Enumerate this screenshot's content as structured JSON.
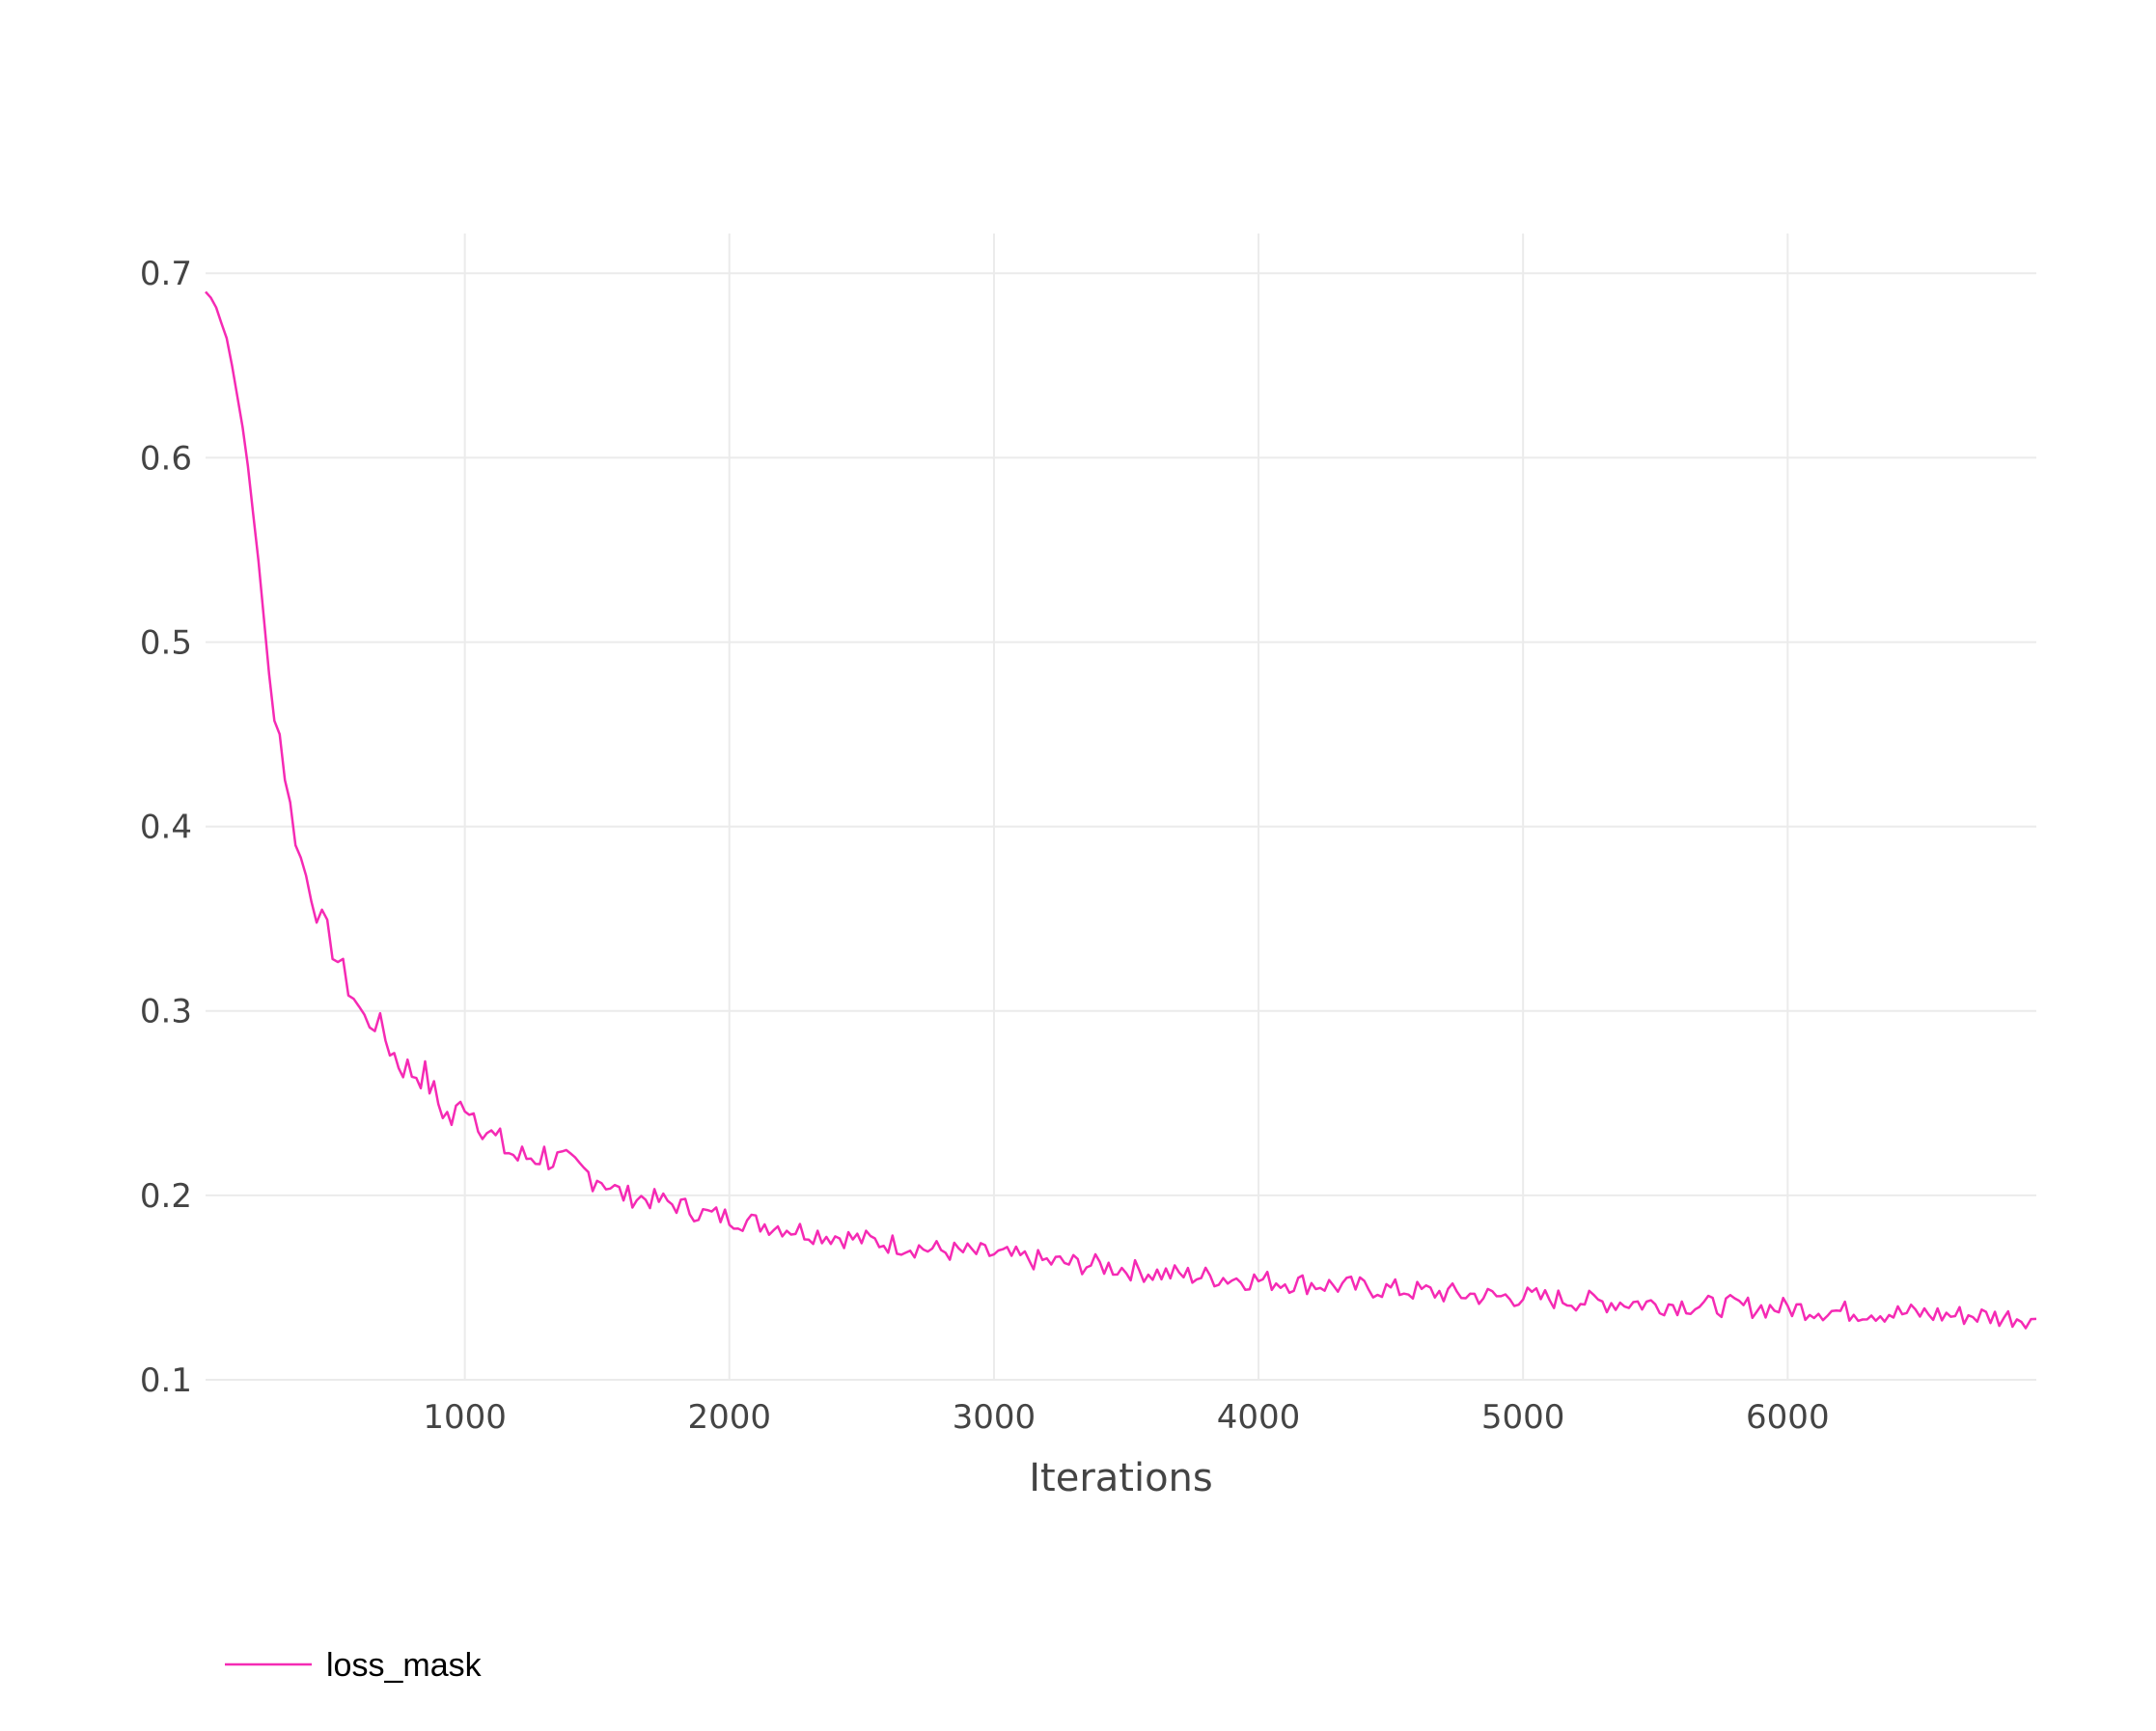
{
  "chart_data": {
    "type": "line",
    "title": "",
    "xlabel": "Iterations",
    "ylabel": "",
    "xlim": [
      20,
      6940
    ],
    "ylim": [
      0.1,
      0.72
    ],
    "xticks": [
      1000,
      2000,
      3000,
      4000,
      5000,
      6000
    ],
    "xtick_labels": [
      "1000",
      "2000",
      "3000",
      "4000",
      "5000",
      "6000"
    ],
    "yticks": [
      0.1,
      0.2,
      0.3,
      0.4,
      0.5,
      0.6,
      0.7
    ],
    "ytick_labels": [
      "0.1",
      "0.2",
      "0.3",
      "0.4",
      "0.5",
      "0.6",
      "0.7"
    ],
    "grid": true,
    "legend": {
      "position": "bottom-left"
    },
    "series": [
      {
        "name": "loss_mask",
        "color": "#f52ab4",
        "x": [
          20,
          60,
          100,
          140,
          180,
          220,
          260,
          300,
          340,
          380,
          420,
          460,
          500,
          540,
          580,
          620,
          660,
          700,
          750,
          800,
          850,
          900,
          950,
          1000,
          1100,
          1200,
          1300,
          1400,
          1500,
          1600,
          1700,
          1800,
          1900,
          2000,
          2100,
          2200,
          2300,
          2400,
          2500,
          2600,
          2700,
          2800,
          2900,
          3000,
          3100,
          3200,
          3300,
          3400,
          3500,
          3600,
          3700,
          3800,
          3900,
          4000,
          4100,
          4200,
          4300,
          4400,
          4500,
          4600,
          4700,
          4800,
          4900,
          5000,
          5100,
          5200,
          5300,
          5400,
          5500,
          5600,
          5700,
          5800,
          5900,
          6000,
          6100,
          6200,
          6300,
          6400,
          6500,
          6600,
          6700,
          6800,
          6900,
          6940
        ],
        "y": [
          0.69,
          0.683,
          0.665,
          0.635,
          0.595,
          0.545,
          0.48,
          0.45,
          0.41,
          0.382,
          0.365,
          0.347,
          0.335,
          0.32,
          0.308,
          0.295,
          0.295,
          0.285,
          0.272,
          0.267,
          0.265,
          0.25,
          0.24,
          0.252,
          0.232,
          0.22,
          0.222,
          0.215,
          0.21,
          0.2,
          0.198,
          0.195,
          0.19,
          0.188,
          0.185,
          0.183,
          0.18,
          0.178,
          0.176,
          0.174,
          0.172,
          0.17,
          0.169,
          0.168,
          0.166,
          0.164,
          0.163,
          0.162,
          0.16,
          0.158,
          0.157,
          0.156,
          0.155,
          0.154,
          0.153,
          0.152,
          0.151,
          0.15,
          0.149,
          0.148,
          0.147,
          0.146,
          0.145,
          0.145,
          0.144,
          0.143,
          0.142,
          0.142,
          0.141,
          0.141,
          0.14,
          0.14,
          0.139,
          0.139,
          0.138,
          0.137,
          0.137,
          0.136,
          0.136,
          0.135,
          0.135,
          0.134,
          0.134,
          0.133
        ]
      }
    ]
  }
}
